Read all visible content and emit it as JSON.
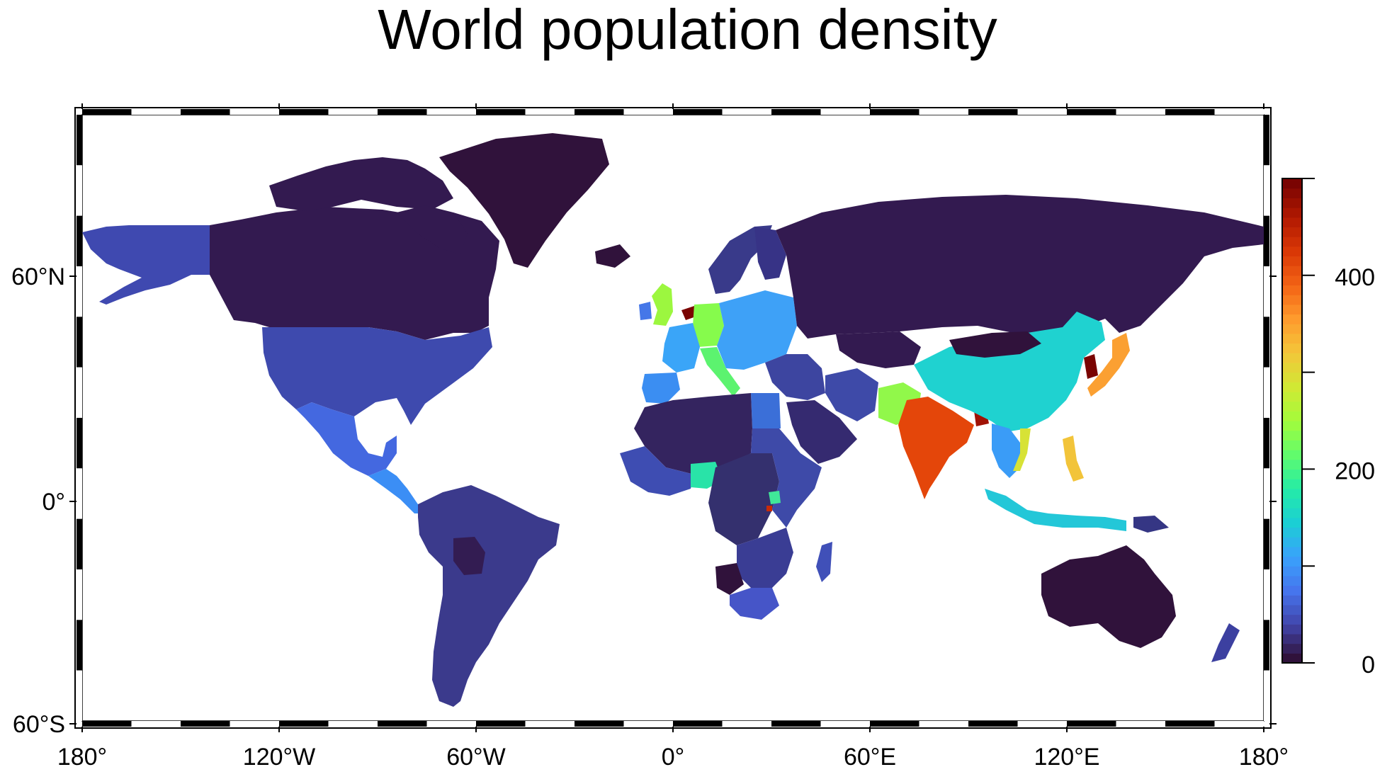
{
  "title": "World population density",
  "x_axis": {
    "ticks": [
      {
        "value": -180,
        "label": "180°"
      },
      {
        "value": -120,
        "label": "120°W"
      },
      {
        "value": -60,
        "label": "60°W"
      },
      {
        "value": 0,
        "label": "0°"
      },
      {
        "value": 60,
        "label": "60°E"
      },
      {
        "value": 120,
        "label": "120°E"
      },
      {
        "value": 180,
        "label": "180°"
      }
    ]
  },
  "y_axis": {
    "ticks": [
      {
        "value": 60,
        "label": "60°N"
      },
      {
        "value": 0,
        "label": "0°"
      },
      {
        "value": -60,
        "label": "60°S"
      }
    ]
  },
  "colorbar": {
    "range": [
      0,
      500
    ],
    "ticks": [
      {
        "value": 0,
        "label": "0"
      },
      {
        "value": 200,
        "label": "200"
      },
      {
        "value": 400,
        "label": "400"
      }
    ],
    "colors": [
      "#30123b",
      "#4145ab",
      "#4675ed",
      "#39a2fc",
      "#1bcfd4",
      "#24eca6",
      "#61fc6c",
      "#a4fc3b",
      "#d1e834",
      "#f3c63a",
      "#fe9b2d",
      "#f36315",
      "#d93806",
      "#b11901",
      "#7a0402"
    ]
  },
  "regions": [
    {
      "name": "Alaska",
      "value": 45,
      "color": "#3f49b0"
    },
    {
      "name": "Canada",
      "value": 4,
      "color": "#331a50"
    },
    {
      "name": "Greenland",
      "value": 0,
      "color": "#30123b"
    },
    {
      "name": "United States",
      "value": 35,
      "color": "#3e4aae"
    },
    {
      "name": "Mexico",
      "value": 65,
      "color": "#4468e0"
    },
    {
      "name": "Central America",
      "value": 90,
      "color": "#3b8ef5"
    },
    {
      "name": "South America",
      "value": 25,
      "color": "#3b3a8c"
    },
    {
      "name": "Bolivia",
      "value": 10,
      "color": "#331c52"
    },
    {
      "name": "Iceland",
      "value": 3,
      "color": "#30123b"
    },
    {
      "name": "United Kingdom",
      "value": 270,
      "color": "#9cf73f"
    },
    {
      "name": "Ireland",
      "value": 70,
      "color": "#4577e8"
    },
    {
      "name": "Scandinavia",
      "value": 20,
      "color": "#393a8a"
    },
    {
      "name": "Finland",
      "value": 18,
      "color": "#373386"
    },
    {
      "name": "France",
      "value": 120,
      "color": "#3aa5f8"
    },
    {
      "name": "Spain",
      "value": 95,
      "color": "#3b8ef2"
    },
    {
      "name": "Netherlands",
      "value": 500,
      "color": "#7a0402"
    },
    {
      "name": "Germany",
      "value": 235,
      "color": "#86fb4c"
    },
    {
      "name": "Eastern Europe",
      "value": 110,
      "color": "#3ea1f7"
    },
    {
      "name": "Italy",
      "value": 200,
      "color": "#5cf36f"
    },
    {
      "name": "Russia",
      "value": 9,
      "color": "#331a50"
    },
    {
      "name": "Kazakhstan",
      "value": 7,
      "color": "#331a50"
    },
    {
      "name": "Middle East",
      "value": 40,
      "color": "#3d45a0"
    },
    {
      "name": "Iran",
      "value": 50,
      "color": "#3e4aa8"
    },
    {
      "name": "Egypt",
      "value": 100,
      "color": "#3b6fd8"
    },
    {
      "name": "Arabia",
      "value": 15,
      "color": "#352a70"
    },
    {
      "name": "Pakistan",
      "value": 260,
      "color": "#91f84a"
    },
    {
      "name": "India",
      "value": 450,
      "color": "#e4460a"
    },
    {
      "name": "Bangladesh",
      "value": 480,
      "color": "#a01205"
    },
    {
      "name": "China",
      "value": 150,
      "color": "#1fd2d0"
    },
    {
      "name": "Mongolia",
      "value": 2,
      "color": "#30123b"
    },
    {
      "name": "Korea",
      "value": 500,
      "color": "#7a0402"
    },
    {
      "name": "Japan",
      "value": 340,
      "color": "#fba032"
    },
    {
      "name": "Southeast Asia",
      "value": 120,
      "color": "#3a9cf7"
    },
    {
      "name": "Vietnam",
      "value": 300,
      "color": "#d7e236"
    },
    {
      "name": "Philippines",
      "value": 350,
      "color": "#f2c43a"
    },
    {
      "name": "Indonesia",
      "value": 140,
      "color": "#23c7d8"
    },
    {
      "name": "Papua New Guinea",
      "value": 18,
      "color": "#353684"
    },
    {
      "name": "Australia",
      "value": 3,
      "color": "#30123b"
    },
    {
      "name": "New Zealand",
      "value": 18,
      "color": "#3c40a0"
    },
    {
      "name": "North Africa",
      "value": 12,
      "color": "#34245f"
    },
    {
      "name": "West Africa",
      "value": 60,
      "color": "#3e4db2"
    },
    {
      "name": "Nigeria",
      "value": 210,
      "color": "#29e3a8"
    },
    {
      "name": "Central Africa",
      "value": 25,
      "color": "#34306e"
    },
    {
      "name": "East Africa",
      "value": 45,
      "color": "#3e4aa8"
    },
    {
      "name": "Rwanda",
      "value": 480,
      "color": "#c92a08"
    },
    {
      "name": "Uganda",
      "value": 200,
      "color": "#40e899"
    },
    {
      "name": "Southern Africa",
      "value": 30,
      "color": "#3a3d94"
    },
    {
      "name": "Namibia",
      "value": 3,
      "color": "#30123b"
    },
    {
      "name": "South Africa",
      "value": 48,
      "color": "#4655c8"
    },
    {
      "name": "Madagascar",
      "value": 45,
      "color": "#4050b8"
    }
  ]
}
